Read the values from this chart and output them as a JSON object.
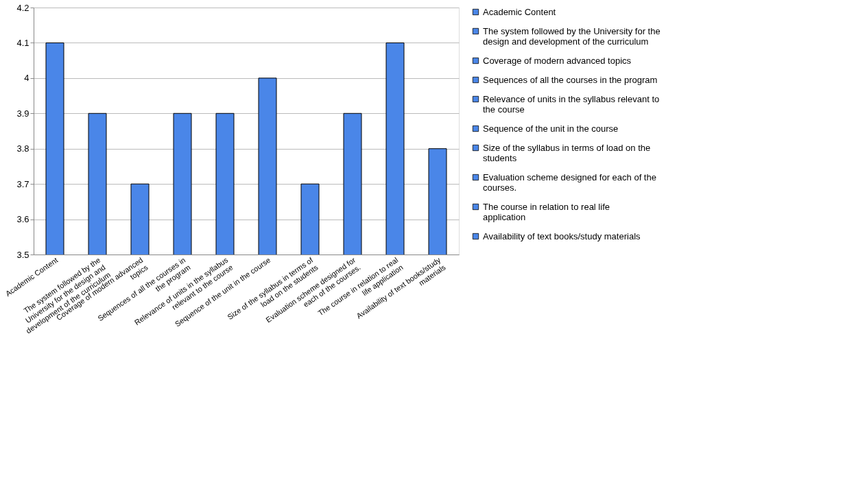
{
  "chart_data": {
    "type": "bar",
    "categories": [
      "Academic Content",
      "The system followed by the University for the design and development of the curriculum",
      "Coverage of modern  advanced topics",
      "Sequences of all the courses in the program",
      "Relevance of units in the syllabus relevant to the course",
      "Sequence of the unit in the course",
      "Size of the syllabus  in terms of load on the students",
      "Evaluation scheme designed for each of the courses.",
      "The course in relation to real life application",
      "Availability of text books/study materials"
    ],
    "series": [
      {
        "name": "Academic Content",
        "color": "#4a86e8",
        "values": [
          4.1,
          null,
          null,
          null,
          null,
          null,
          null,
          null,
          null,
          null
        ]
      },
      {
        "name": "The system followed by the University for the design and development of the curriculum",
        "color": "#4a86e8",
        "values": [
          null,
          3.9,
          null,
          null,
          null,
          null,
          null,
          null,
          null,
          null
        ]
      },
      {
        "name": "Coverage of modern  advanced topics",
        "color": "#4a86e8",
        "values": [
          null,
          null,
          3.7,
          null,
          null,
          null,
          null,
          null,
          null,
          null
        ]
      },
      {
        "name": "Sequences of all the courses in the program",
        "color": "#4a86e8",
        "values": [
          null,
          null,
          null,
          3.9,
          null,
          null,
          null,
          null,
          null,
          null
        ]
      },
      {
        "name": "Relevance of units in the syllabus relevant to the course",
        "color": "#4a86e8",
        "values": [
          null,
          null,
          null,
          null,
          3.9,
          null,
          null,
          null,
          null,
          null
        ]
      },
      {
        "name": "Sequence of the unit in the course",
        "color": "#4a86e8",
        "values": [
          null,
          null,
          null,
          null,
          null,
          4,
          null,
          null,
          null,
          null
        ]
      },
      {
        "name": "Size of the syllabus  in terms of load on the students",
        "color": "#4a86e8",
        "values": [
          null,
          null,
          null,
          null,
          null,
          null,
          3.7,
          null,
          null,
          null
        ]
      },
      {
        "name": "Evaluation scheme designed for each of the courses.",
        "color": "#4a86e8",
        "values": [
          null,
          null,
          null,
          null,
          null,
          null,
          null,
          3.9,
          null,
          null
        ]
      },
      {
        "name": "The course in relation to real life application",
        "color": "#4a86e8",
        "values": [
          null,
          null,
          null,
          null,
          null,
          null,
          null,
          null,
          4.1,
          null
        ]
      },
      {
        "name": "Availability of text books/study materials",
        "color": "#4a86e8",
        "values": [
          null,
          null,
          null,
          null,
          null,
          null,
          null,
          null,
          null,
          3.8
        ]
      }
    ],
    "ylim": [
      3.5,
      4.2
    ],
    "yticks": [
      3.5,
      3.6,
      3.7,
      3.8,
      3.9,
      4,
      4.1,
      4.2
    ],
    "grid": "y",
    "legend": "right"
  }
}
